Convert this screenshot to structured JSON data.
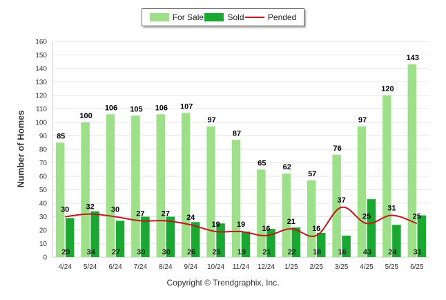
{
  "legend": {
    "for_sale": "For Sale",
    "sold": "Sold",
    "pended": "Pended"
  },
  "ylabel": "Number of Homes",
  "copyright": "Copyright © Trendgraphix, Inc.",
  "colors": {
    "for_sale": "#9ee08a",
    "sold": "#1aa832",
    "pended": "#c0161c",
    "grid": "#e6e6e6"
  },
  "chart_data": {
    "type": "bar",
    "categories": [
      "4/24",
      "5/24",
      "6/24",
      "7/24",
      "8/24",
      "9/24",
      "10/24",
      "11/24",
      "12/24",
      "1/25",
      "2/25",
      "3/25",
      "4/25",
      "5/25",
      "6/25"
    ],
    "series": [
      {
        "name": "For Sale",
        "type": "bar",
        "values": [
          85,
          100,
          106,
          105,
          106,
          107,
          97,
          87,
          65,
          62,
          57,
          76,
          97,
          120,
          143
        ]
      },
      {
        "name": "Sold",
        "type": "bar",
        "values": [
          29,
          34,
          27,
          30,
          30,
          26,
          25,
          19,
          21,
          22,
          18,
          16,
          43,
          24,
          31
        ]
      },
      {
        "name": "Pended",
        "type": "line",
        "values": [
          30,
          32,
          30,
          27,
          27,
          24,
          19,
          19,
          16,
          21,
          16,
          37,
          25,
          31,
          25
        ]
      }
    ],
    "ylabel": "Number of Homes",
    "xlabel": "",
    "ylim": [
      0,
      160
    ],
    "yticks": [
      0,
      10,
      20,
      30,
      40,
      50,
      60,
      70,
      80,
      90,
      100,
      110,
      120,
      130,
      140,
      150,
      160
    ],
    "grid": true,
    "legend_position": "top-center"
  }
}
